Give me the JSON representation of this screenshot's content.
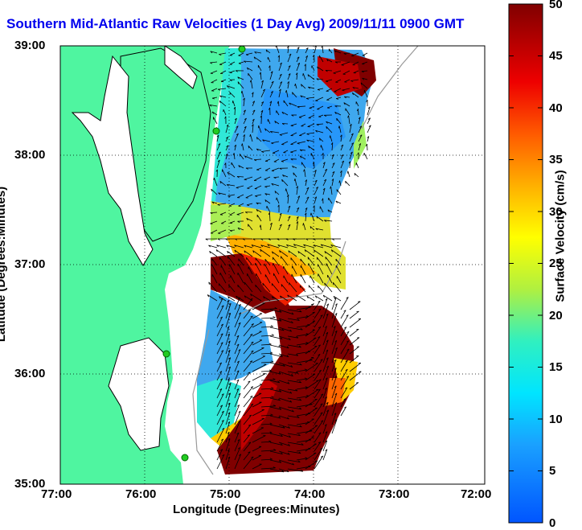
{
  "title": "Southern Mid-Atlantic Raw Velocities (1 Day Avg) 2009/11/11 0900 GMT",
  "axes": {
    "xlabel": "Longitude (Degrees:Minutes)",
    "ylabel": "Latitude (Degrees:Minutes)",
    "xticks": [
      "77:00",
      "76:00",
      "75:00",
      "74:00",
      "73:00",
      "72:00"
    ],
    "yticks": [
      "39:00",
      "38:00",
      "37:00",
      "36:00",
      "35:00"
    ]
  },
  "colorbar": {
    "label": "Surface Velocity (cm/s)",
    "ticks": [
      "50",
      "45",
      "40",
      "35",
      "30",
      "25",
      "20",
      "15",
      "10",
      "5",
      "0"
    ]
  },
  "colors": {
    "land": "#4ff5a0",
    "ocean": "#ffffff",
    "title": "#0000ee",
    "station": "#22cc22"
  }
}
